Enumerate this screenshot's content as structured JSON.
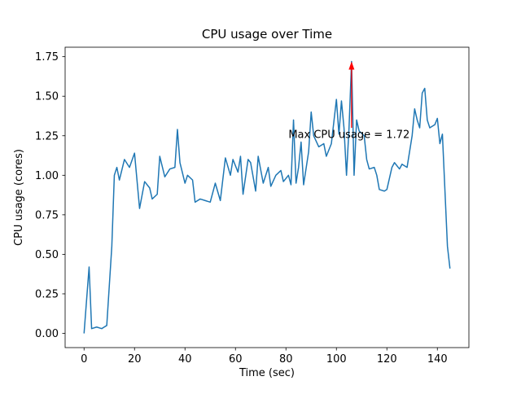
{
  "chart_data": {
    "type": "line",
    "title": "CPU usage over Time",
    "xlabel": "Time (sec)",
    "ylabel": "CPU usage (cores)",
    "grid": false,
    "legend": null,
    "line_color": "#1f77b4",
    "line_width": 1.5,
    "xlim": [
      -7.5,
      152.5
    ],
    "ylim": [
      -0.09,
      1.81
    ],
    "xticks": [
      0,
      20,
      40,
      60,
      80,
      100,
      120,
      140
    ],
    "xtick_labels": [
      "0",
      "20",
      "40",
      "60",
      "80",
      "100",
      "120",
      "140"
    ],
    "yticks": [
      0,
      0.25,
      0.5,
      0.75,
      1.0,
      1.25,
      1.5,
      1.75
    ],
    "ytick_labels": [
      "0.00",
      "0.25",
      "0.50",
      "0.75",
      "1.00",
      "1.25",
      "1.50",
      "1.75"
    ],
    "x": [
      0,
      2,
      3,
      5,
      7,
      9,
      10,
      11,
      12,
      13,
      14,
      16,
      18,
      20,
      22,
      24,
      26,
      27,
      29,
      30,
      32,
      34,
      36,
      37,
      38,
      40,
      41,
      43,
      44,
      46,
      48,
      50,
      52,
      54,
      56,
      58,
      59,
      61,
      62,
      63,
      65,
      66,
      68,
      69,
      71,
      73,
      74,
      76,
      78,
      79,
      81,
      82,
      83,
      84,
      85,
      86,
      87,
      89,
      90,
      91,
      93,
      95,
      96,
      98,
      100,
      101,
      102,
      103,
      104,
      105,
      106,
      107,
      108,
      109,
      111,
      112,
      113,
      115,
      116,
      117,
      119,
      120,
      122,
      123,
      125,
      126,
      128,
      130,
      131,
      132,
      133,
      134,
      135,
      136,
      137,
      139,
      140,
      141,
      142,
      144,
      145
    ],
    "y": [
      0.0,
      0.42,
      0.03,
      0.04,
      0.03,
      0.05,
      0.3,
      0.55,
      1.0,
      1.05,
      0.97,
      1.1,
      1.05,
      1.14,
      0.79,
      0.96,
      0.92,
      0.85,
      0.88,
      1.12,
      0.99,
      1.04,
      1.05,
      1.29,
      1.08,
      0.95,
      1.0,
      0.97,
      0.83,
      0.85,
      0.84,
      0.83,
      0.95,
      0.84,
      1.11,
      1.0,
      1.1,
      1.02,
      1.12,
      0.88,
      1.1,
      1.08,
      0.9,
      1.12,
      0.95,
      1.05,
      0.93,
      1.0,
      1.03,
      0.96,
      1.0,
      0.94,
      1.35,
      0.95,
      1.05,
      1.21,
      0.94,
      1.15,
      1.4,
      1.25,
      1.18,
      1.2,
      1.12,
      1.2,
      1.48,
      1.26,
      1.47,
      1.3,
      1.0,
      1.3,
      1.72,
      1.0,
      1.35,
      1.28,
      1.25,
      1.1,
      1.04,
      1.05,
      1.0,
      0.91,
      0.9,
      0.91,
      1.05,
      1.08,
      1.04,
      1.07,
      1.05,
      1.25,
      1.42,
      1.35,
      1.3,
      1.52,
      1.55,
      1.35,
      1.3,
      1.32,
      1.36,
      1.2,
      1.26,
      0.55,
      0.41
    ],
    "annotation": {
      "text": "Max CPU usage = 1.72",
      "color": "#ff0000",
      "text_xy": [
        81,
        1.235
      ],
      "arrow_x": 106,
      "arrow_tail_y": 1.3,
      "arrow_tip_y": 1.72
    }
  }
}
